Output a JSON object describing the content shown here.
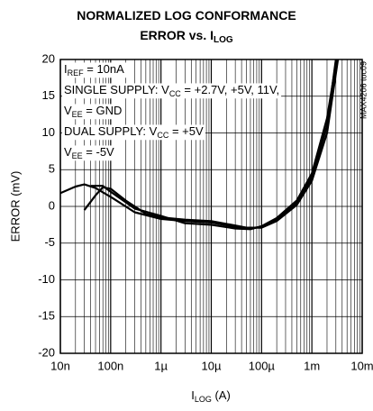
{
  "chart_data": {
    "type": "line",
    "title": [
      [
        "NORMALIZED LOG CONFORMANCE"
      ],
      [
        "ERROR vs. I",
        "LOG"
      ]
    ],
    "xlabel": [
      "I",
      "LOG",
      " (A)"
    ],
    "ylabel": "ERROR (mV)",
    "side_note": "MAX4206 toc09",
    "annotations": [
      [
        "I",
        "REF",
        " = 10nA"
      ],
      [
        "SINGLE SUPPLY: V",
        "CC",
        " = +2.7V, +5V, 11V,"
      ],
      [
        "V",
        "EE",
        " = GND"
      ],
      [
        "DUAL SUPPLY: V",
        "CC",
        " = +5V"
      ],
      [
        "V",
        "EE",
        " = -5V"
      ]
    ],
    "xlog": true,
    "xlim": [
      1e-08,
      0.01
    ],
    "xticks": [
      {
        "value": 1e-08,
        "label": "10n"
      },
      {
        "value": 1e-07,
        "label": "100n"
      },
      {
        "value": 1e-06,
        "label": "1µ"
      },
      {
        "value": 1e-05,
        "label": "10µ"
      },
      {
        "value": 0.0001,
        "label": "100µ"
      },
      {
        "value": 0.001,
        "label": "1m"
      },
      {
        "value": 0.01,
        "label": "10m"
      }
    ],
    "ylim": [
      -20,
      20
    ],
    "yticks": [
      -20,
      -15,
      -10,
      -5,
      0,
      5,
      10,
      15,
      20
    ],
    "grid": true,
    "series": [
      {
        "color": "#000000",
        "x": [
          1e-08,
          2e-08,
          3e-08,
          5e-08,
          1e-07,
          3e-07,
          1e-06,
          3e-06,
          1e-05,
          3e-05,
          5e-05,
          0.0001,
          0.0002,
          0.0005,
          0.001,
          0.002,
          0.003
        ],
        "values": [
          1.8,
          2.7,
          3,
          2.5,
          1.3,
          -0.8,
          -1.7,
          -2,
          -2.2,
          -2.8,
          -3,
          -2.8,
          -1.8,
          0.5,
          4,
          11,
          20
        ]
      },
      {
        "color": "#000000",
        "x": [
          3e-08,
          5e-08,
          7e-08,
          1e-07,
          2e-07,
          5e-07,
          1e-06,
          3e-06,
          1e-05,
          3e-05,
          5e-05,
          0.0001,
          0.0002,
          0.0005,
          0.001,
          0.002,
          0.0033
        ],
        "values": [
          -0.5,
          1.5,
          2.6,
          2.4,
          0.8,
          -1,
          -1.5,
          -1.8,
          -2,
          -2.6,
          -2.9,
          -2.9,
          -2,
          0.2,
          3.5,
          10,
          20
        ]
      },
      {
        "color": "#000000",
        "x": [
          4e-08,
          7e-08,
          1e-07,
          3e-07,
          1e-06,
          3e-06,
          1e-05,
          3e-05,
          6e-05,
          0.0001,
          0.0002,
          0.0005,
          0.001,
          0.002,
          0.0031
        ],
        "values": [
          2.8,
          2.8,
          2,
          -0.3,
          -1.3,
          -2.3,
          -2.5,
          -3,
          -3.1,
          -2.7,
          -1.6,
          0.8,
          4.5,
          12,
          20
        ]
      }
    ]
  }
}
